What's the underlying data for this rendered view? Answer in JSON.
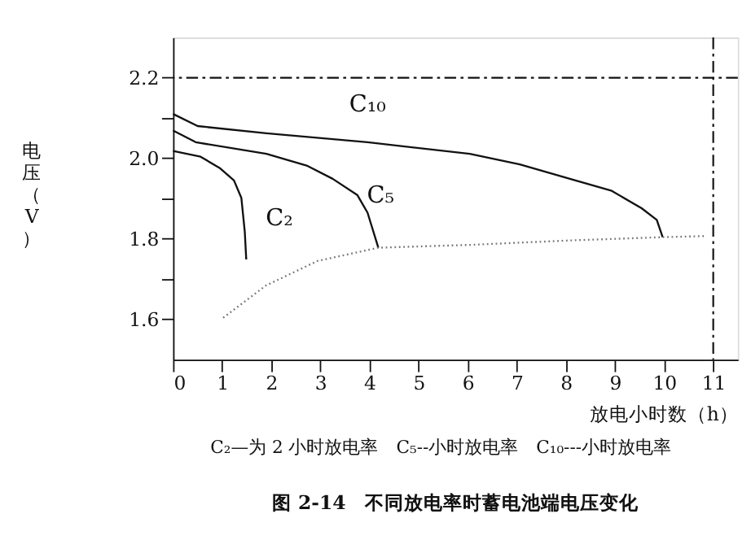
{
  "chart_data": {
    "type": "line",
    "title": "图 2-14　不同放电率时蓄电池端电压变化",
    "xlabel": "放电小时数（h）",
    "ylabel": "电压（V）",
    "xlim": [
      0,
      11.5
    ],
    "ylim": [
      1.5,
      2.3
    ],
    "xticks": [
      0,
      1,
      2,
      3,
      4,
      5,
      6,
      7,
      8,
      9,
      10,
      11
    ],
    "yticks": [
      1.6,
      {
        "value": 1.7,
        "label": null
      },
      1.8,
      {
        "value": 1.9,
        "label": null
      },
      {
        "value": 2.0,
        "label": "2.0"
      },
      {
        "value": 2.1,
        "label": null
      },
      2.2
    ],
    "grid": false,
    "legend": false,
    "line_style": "solid",
    "series": [
      {
        "name": "C₁₀",
        "color": "#111111",
        "x": [
          0,
          0.5,
          1.9,
          3.96,
          6.04,
          7.06,
          8.08,
          8.92,
          9.54,
          9.85,
          9.97
        ],
        "values": [
          2.11,
          2.08,
          2.062,
          2.04,
          2.011,
          1.985,
          1.949,
          1.92,
          1.876,
          1.847,
          1.804
        ]
      },
      {
        "name": "C₅",
        "color": "#111111",
        "x": [
          0,
          0.46,
          1.9,
          2.72,
          3.25,
          3.75,
          3.96,
          4.18
        ],
        "values": [
          2.069,
          2.04,
          2.011,
          1.982,
          1.949,
          1.909,
          1.865,
          1.778
        ]
      },
      {
        "name": "C₂",
        "color": "#111111",
        "x": [
          0,
          0.56,
          0.96,
          1.24,
          1.39,
          1.46,
          1.49
        ],
        "values": [
          2.018,
          2.004,
          1.975,
          1.945,
          1.902,
          1.818,
          1.749
        ]
      },
      {
        "color": "#777777",
        "line_style": "dotted",
        "x": [
          1.02,
          1.89,
          2.94,
          4.18,
          6.04,
          8.08,
          9.94,
          10.84
        ],
        "values": [
          1.604,
          1.684,
          1.745,
          1.778,
          1.785,
          1.796,
          1.804,
          1.807
        ]
      }
    ],
    "ref_lines": [
      {
        "axis": "y",
        "value": 2.2,
        "color": "#111111",
        "line_style": "dashed"
      },
      {
        "axis": "x",
        "value": 11,
        "color": "#111111",
        "line_style": "dashed"
      }
    ],
    "annotations": [
      "C₂—为 2 小时放电率　C₅--小时放电率　C₁₀---小时放电率"
    ]
  }
}
